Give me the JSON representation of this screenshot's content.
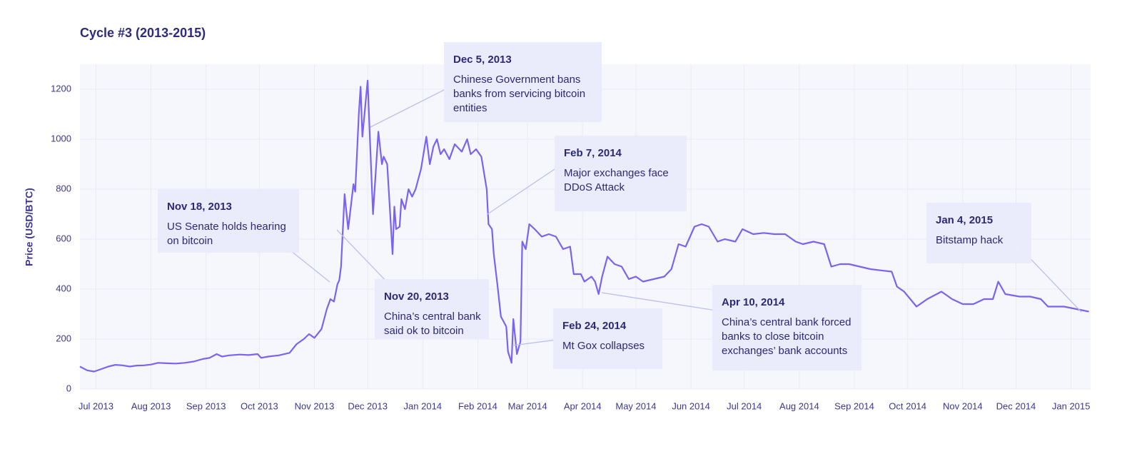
{
  "chart_data": {
    "type": "line",
    "title": "Cycle #3 (2013-2015)",
    "y_label": "Price (USD/BTC)",
    "color": "#7b62f2",
    "grid": true,
    "xlim": [
      "2013-06-22",
      "2015-01-12"
    ],
    "ylim": [
      0,
      1300
    ],
    "yticks": [
      0,
      200,
      400,
      600,
      800,
      1000,
      1200
    ],
    "xticks": [
      {
        "value": "2013-07-01",
        "label": "Jul 2013"
      },
      {
        "value": "2013-08-01",
        "label": "Aug 2013"
      },
      {
        "value": "2013-09-01",
        "label": "Sep 2013"
      },
      {
        "value": "2013-10-01",
        "label": "Oct 2013"
      },
      {
        "value": "2013-11-01",
        "label": "Nov 2013"
      },
      {
        "value": "2013-12-01",
        "label": "Dec 2013"
      },
      {
        "value": "2014-01-01",
        "label": "Jan 2014"
      },
      {
        "value": "2014-02-01",
        "label": "Feb 2014"
      },
      {
        "value": "2014-03-01",
        "label": "Mar 2014"
      },
      {
        "value": "2014-04-01",
        "label": "Apr 2014"
      },
      {
        "value": "2014-05-01",
        "label": "May 2014"
      },
      {
        "value": "2014-06-01",
        "label": "Jun 2014"
      },
      {
        "value": "2014-07-01",
        "label": "Jul 2014"
      },
      {
        "value": "2014-08-01",
        "label": "Aug 2014"
      },
      {
        "value": "2014-09-01",
        "label": "Sep 2014"
      },
      {
        "value": "2014-10-01",
        "label": "Oct 2014"
      },
      {
        "value": "2014-11-01",
        "label": "Nov 2014"
      },
      {
        "value": "2014-12-01",
        "label": "Dec 2014"
      },
      {
        "value": "2015-01-01",
        "label": "Jan 2015"
      }
    ],
    "x": [
      "2013-06-22",
      "2013-06-26",
      "2013-06-30",
      "2013-07-04",
      "2013-07-08",
      "2013-07-12",
      "2013-07-16",
      "2013-07-20",
      "2013-07-24",
      "2013-07-28",
      "2013-08-01",
      "2013-08-05",
      "2013-08-10",
      "2013-08-15",
      "2013-08-20",
      "2013-08-25",
      "2013-08-30",
      "2013-09-03",
      "2013-09-07",
      "2013-09-10",
      "2013-09-14",
      "2013-09-20",
      "2013-09-25",
      "2013-09-30",
      "2013-10-02",
      "2013-10-06",
      "2013-10-12",
      "2013-10-18",
      "2013-10-22",
      "2013-10-26",
      "2013-10-29",
      "2013-11-01",
      "2013-11-05",
      "2013-11-08",
      "2013-11-10",
      "2013-11-12",
      "2013-11-14",
      "2013-11-15",
      "2013-11-16",
      "2013-11-18",
      "2013-11-20",
      "2013-11-21",
      "2013-11-23",
      "2013-11-24",
      "2013-11-26",
      "2013-11-27",
      "2013-11-28",
      "2013-12-01",
      "2013-12-02",
      "2013-12-04",
      "2013-12-07",
      "2013-12-09",
      "2013-12-10",
      "2013-12-12",
      "2013-12-15",
      "2013-12-16",
      "2013-12-17",
      "2013-12-19",
      "2013-12-20",
      "2013-12-22",
      "2013-12-24",
      "2013-12-26",
      "2013-12-28",
      "2013-12-31",
      "2014-01-03",
      "2014-01-05",
      "2014-01-07",
      "2014-01-09",
      "2014-01-11",
      "2014-01-13",
      "2014-01-16",
      "2014-01-19",
      "2014-01-23",
      "2014-01-26",
      "2014-01-28",
      "2014-01-31",
      "2014-02-03",
      "2014-02-06",
      "2014-02-07",
      "2014-02-09",
      "2014-02-10",
      "2014-02-12",
      "2014-02-14",
      "2014-02-17",
      "2014-02-18",
      "2014-02-20",
      "2014-02-21",
      "2014-02-23",
      "2014-02-25",
      "2014-02-26",
      "2014-02-28",
      "2014-03-02",
      "2014-03-05",
      "2014-03-09",
      "2014-03-13",
      "2014-03-17",
      "2014-03-21",
      "2014-03-25",
      "2014-03-27",
      "2014-03-31",
      "2014-04-02",
      "2014-04-06",
      "2014-04-08",
      "2014-04-10",
      "2014-04-12",
      "2014-04-15",
      "2014-04-19",
      "2014-04-23",
      "2014-04-27",
      "2014-05-01",
      "2014-05-05",
      "2014-05-11",
      "2014-05-17",
      "2014-05-21",
      "2014-05-25",
      "2014-05-29",
      "2014-06-03",
      "2014-06-07",
      "2014-06-11",
      "2014-06-16",
      "2014-06-20",
      "2014-06-26",
      "2014-06-30",
      "2014-07-06",
      "2014-07-12",
      "2014-07-18",
      "2014-07-24",
      "2014-07-30",
      "2014-08-03",
      "2014-08-09",
      "2014-08-15",
      "2014-08-19",
      "2014-08-24",
      "2014-08-29",
      "2014-09-04",
      "2014-09-10",
      "2014-09-16",
      "2014-09-22",
      "2014-09-25",
      "2014-09-29",
      "2014-10-06",
      "2014-10-12",
      "2014-10-20",
      "2014-10-26",
      "2014-11-01",
      "2014-11-07",
      "2014-11-13",
      "2014-11-18",
      "2014-11-21",
      "2014-11-25",
      "2014-12-03",
      "2014-12-09",
      "2014-12-15",
      "2014-12-19",
      "2014-12-23",
      "2014-12-28",
      "2015-01-04",
      "2015-01-11"
    ],
    "values": [
      90,
      75,
      70,
      80,
      90,
      97,
      95,
      90,
      94,
      95,
      98,
      105,
      103,
      102,
      105,
      110,
      120,
      125,
      140,
      130,
      135,
      138,
      136,
      140,
      125,
      130,
      135,
      145,
      180,
      200,
      220,
      205,
      240,
      320,
      360,
      350,
      420,
      435,
      490,
      780,
      640,
      700,
      820,
      790,
      1100,
      1210,
      1010,
      1235,
      1050,
      700,
      1030,
      900,
      930,
      900,
      540,
      730,
      640,
      650,
      760,
      720,
      800,
      770,
      800,
      880,
      1010,
      900,
      970,
      1000,
      940,
      960,
      920,
      980,
      950,
      1000,
      940,
      960,
      930,
      800,
      660,
      640,
      540,
      420,
      290,
      250,
      150,
      105,
      280,
      140,
      190,
      590,
      560,
      660,
      640,
      610,
      620,
      610,
      560,
      570,
      460,
      460,
      430,
      450,
      430,
      380,
      450,
      530,
      500,
      490,
      440,
      450,
      430,
      440,
      450,
      480,
      580,
      570,
      650,
      660,
      650,
      590,
      600,
      590,
      640,
      620,
      625,
      620,
      620,
      590,
      580,
      590,
      580,
      490,
      500,
      500,
      490,
      480,
      475,
      470,
      410,
      390,
      330,
      360,
      390,
      360,
      340,
      340,
      360,
      360,
      430,
      380,
      370,
      370,
      360,
      330,
      330,
      330,
      320,
      310
    ],
    "annotations": [
      {
        "date": "Dec 5, 2013",
        "lines": [
          "Chinese Government bans",
          "banks from servicing bitcoin",
          "entities"
        ]
      },
      {
        "date": "Feb 7, 2014",
        "lines": [
          "Major exchanges face",
          "DDoS Attack"
        ]
      },
      {
        "date": "Nov 18, 2013",
        "lines": [
          "US Senate holds hearing",
          "on bitcoin"
        ]
      },
      {
        "date": "Nov 20, 2013",
        "lines": [
          "China’s central bank",
          "said ok to bitcoin"
        ]
      },
      {
        "date": "Apr 10, 2014",
        "lines": [
          "China’s central bank forced",
          "banks to close bitcoin",
          "exchanges’ bank accounts"
        ]
      },
      {
        "date": "Feb 24, 2014",
        "lines": [
          "Mt Gox collapses"
        ]
      },
      {
        "date": "Jan 4, 2015",
        "lines": [
          "Bitstamp hack"
        ]
      }
    ]
  }
}
